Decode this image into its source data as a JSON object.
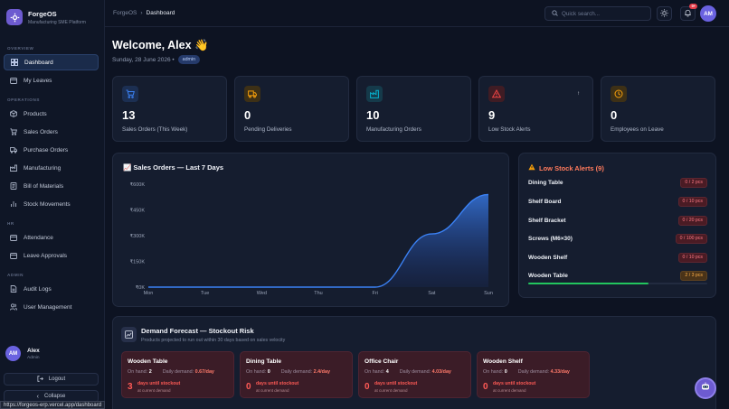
{
  "brand": {
    "name": "ForgeOS",
    "subtitle": "Manufacturing SME Platform"
  },
  "sidebar": {
    "sections": [
      "OVERVIEW",
      "OPERATIONS",
      "HR",
      "ADMIN"
    ],
    "items": [
      {
        "label": "Dashboard",
        "icon": "grid-icon",
        "active": true
      },
      {
        "label": "My Leaves",
        "icon": "calendar-icon"
      },
      {
        "label": "Products",
        "icon": "box-icon"
      },
      {
        "label": "Sales Orders",
        "icon": "cart-icon"
      },
      {
        "label": "Purchase Orders",
        "icon": "truck-icon"
      },
      {
        "label": "Manufacturing",
        "icon": "factory-icon"
      },
      {
        "label": "Bill of Materials",
        "icon": "list-icon"
      },
      {
        "label": "Stock Movements",
        "icon": "bar-chart-icon"
      },
      {
        "label": "Attendance",
        "icon": "calendar-icon"
      },
      {
        "label": "Leave Approvals",
        "icon": "calendar-icon"
      },
      {
        "label": "Audit Logs",
        "icon": "file-icon"
      },
      {
        "label": "User Management",
        "icon": "users-icon"
      }
    ],
    "user": {
      "initials": "AM",
      "name": "Alex",
      "role": "Admin"
    },
    "logout_label": "Logout",
    "collapse_label": "Collapse",
    "status_url": "https://forgeos-erp.vercel.app/dashboard"
  },
  "topbar": {
    "breadcrumb_root": "ForgeOS",
    "breadcrumb_sep": "›",
    "breadcrumb_current": "Dashboard",
    "search_placeholder": "Quick search...",
    "notif_count": "9+",
    "avatar_initials": "AM"
  },
  "welcome": {
    "title": "Welcome, Alex 👋",
    "date": "Sunday, 28 June 2026 •",
    "role": "admin"
  },
  "stats": [
    {
      "value": "13",
      "label": "Sales Orders (This Week)",
      "icon": "cart-icon",
      "color": "#3b82f6"
    },
    {
      "value": "0",
      "label": "Pending Deliveries",
      "icon": "truck-icon",
      "color": "#f59e0b"
    },
    {
      "value": "10",
      "label": "Manufacturing Orders",
      "icon": "factory-icon",
      "color": "#06b6d4"
    },
    {
      "value": "9",
      "label": "Low Stock Alerts",
      "icon": "warning-icon",
      "color": "#ef4444",
      "trend": "↑"
    },
    {
      "value": "0",
      "label": "Employees on Leave",
      "icon": "clock-icon",
      "color": "#f59e0b"
    }
  ],
  "sales_chart": {
    "title": "📈 Sales Orders — Last 7 Days"
  },
  "chart_data": {
    "type": "area",
    "title": "Sales Orders — Last 7 Days",
    "categories": [
      "Mon",
      "Tue",
      "Wed",
      "Thu",
      "Fri",
      "Sat",
      "Sun"
    ],
    "values": [
      0,
      0,
      0,
      0,
      0,
      310000,
      540000
    ],
    "y_ticks": [
      "₹0K",
      "₹150K",
      "₹300K",
      "₹450K",
      "₹600K"
    ],
    "ylim": [
      0,
      600000
    ],
    "grid": false,
    "color": "#3b82f6"
  },
  "low_stock": {
    "title": "Low Stock Alerts (9)",
    "items": [
      {
        "name": "Dining Table",
        "badge": "0 / 2 pcs",
        "level": "critical"
      },
      {
        "name": "Shelf Board",
        "badge": "0 / 10 pcs",
        "level": "critical"
      },
      {
        "name": "Shelf Bracket",
        "badge": "0 / 20 pcs",
        "level": "critical"
      },
      {
        "name": "Screws (M6×30)",
        "badge": "0 / 100 pcs",
        "level": "critical"
      },
      {
        "name": "Wooden Shelf",
        "badge": "0 / 10 pcs",
        "level": "critical"
      },
      {
        "name": "Wooden Table",
        "badge": "2 / 3 pcs",
        "level": "warn",
        "fill": 0.67
      }
    ]
  },
  "forecast": {
    "title": "Demand Forecast — Stockout Risk",
    "subtitle": "Products projected to run out within 30 days based on sales velocity",
    "on_hand_label": "On hand:",
    "demand_label": "Daily demand:",
    "until_label": "days until stockout",
    "current_label": "at current demand",
    "items": [
      {
        "name": "Wooden Table",
        "on_hand": "2",
        "demand": "0.67/day",
        "days": "3"
      },
      {
        "name": "Dining Table",
        "on_hand": "0",
        "demand": "2.4/day",
        "days": "0"
      },
      {
        "name": "Office Chair",
        "on_hand": "4",
        "demand": "4.03/day",
        "days": "0"
      },
      {
        "name": "Wooden Shelf",
        "on_hand": "0",
        "demand": "4.33/day",
        "days": "0"
      }
    ]
  }
}
